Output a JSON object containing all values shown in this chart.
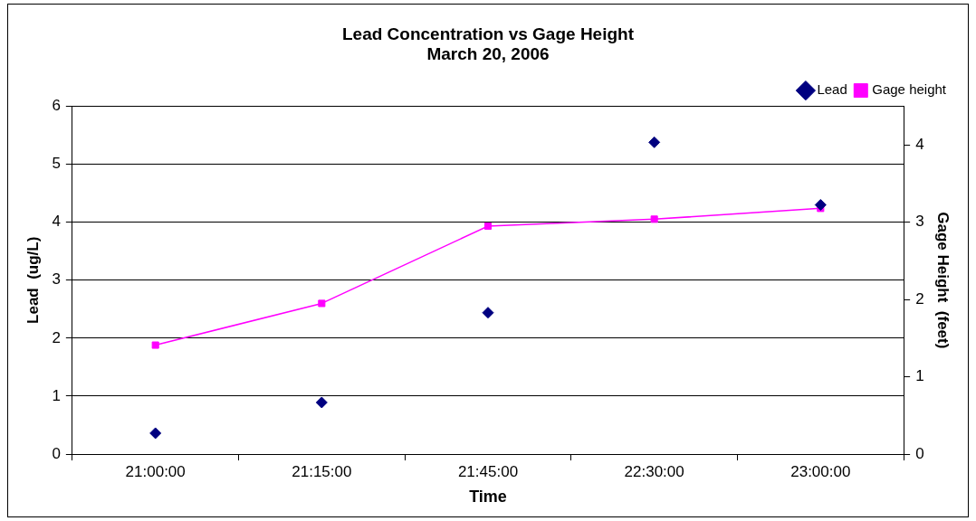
{
  "chart_data": {
    "type": "scatter",
    "title": "Lead Concentration vs Gage Height",
    "subtitle": "March 20, 2006",
    "xlabel": "Time",
    "ylabel": "Lead  (ug/L)",
    "y2label": "Gage Height  (feet)",
    "categories": [
      "21:00:00",
      "21:15:00",
      "21:45:00",
      "22:30:00",
      "23:00:00"
    ],
    "series": [
      {
        "name": "Lead",
        "color": "#000080",
        "marker": "diamond",
        "values": [
          0.36,
          0.89,
          2.44,
          5.38,
          4.3
        ]
      },
      {
        "name": "Gage height",
        "type": "line",
        "axis": "y2",
        "color": "#ff00ff",
        "marker": "square",
        "values": [
          1.41,
          1.95,
          2.95,
          3.04,
          3.18
        ]
      }
    ],
    "ylim": [
      0,
      6
    ],
    "yticks": [
      0,
      1,
      2,
      3,
      4,
      5,
      6
    ],
    "y2lim": [
      0,
      4.5
    ],
    "y2ticks": [
      0,
      1,
      2,
      3,
      4
    ],
    "grid": "y",
    "legend": "top right"
  }
}
